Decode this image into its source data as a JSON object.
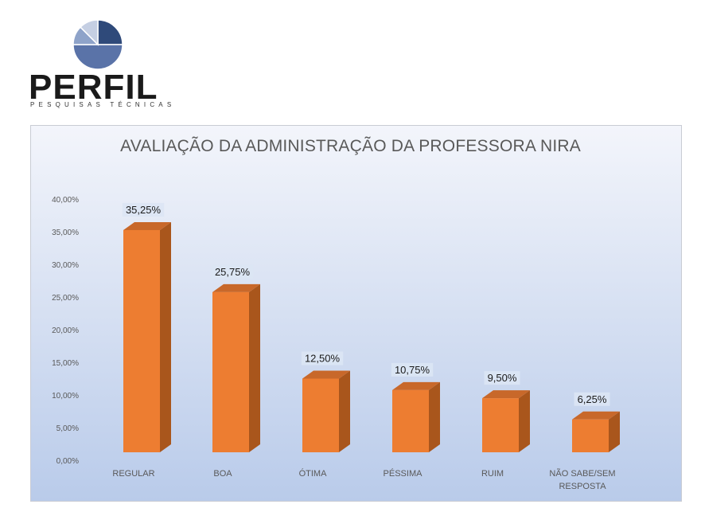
{
  "brand": {
    "name": "PERFIL",
    "tagline": "PESQUISAS TÉCNICAS",
    "logo_colors": [
      "#2f4a7a",
      "#5a73a8",
      "#8ea3c9",
      "#c5cfe3"
    ]
  },
  "colors": {
    "bar_front": "#ed7d31",
    "bar_side": "#a9561c",
    "bar_top": "#c8682a",
    "axis_text": "#595959",
    "label_bg": "#dce6f4"
  },
  "chart_data": {
    "type": "bar",
    "title": "AVALIAÇÃO DA ADMINISTRAÇÃO DA PROFESSORA NIRA",
    "categories": [
      "REGULAR",
      "BOA",
      "ÓTIMA",
      "PÉSSIMA",
      "RUIM",
      "NÃO SABE/SEM RESPOSTA"
    ],
    "category_lines": [
      [
        "REGULAR"
      ],
      [
        "BOA"
      ],
      [
        "ÓTIMA"
      ],
      [
        "PÉSSIMA"
      ],
      [
        "RUIM"
      ],
      [
        "NÃO SABE/SEM",
        "RESPOSTA"
      ]
    ],
    "values": [
      35.25,
      25.75,
      12.5,
      10.75,
      9.5,
      6.25
    ],
    "data_labels": [
      "35,25%",
      "25,75%",
      "12,50%",
      "10,75%",
      "9,50%",
      "6,25%"
    ],
    "ylim": [
      0,
      40
    ],
    "yticks": [
      "0,00%",
      "5,00%",
      "10,00%",
      "15,00%",
      "20,00%",
      "25,00%",
      "30,00%",
      "35,00%",
      "40,00%"
    ],
    "xlabel": "",
    "ylabel": "",
    "grid": false,
    "legend": "none",
    "style": "3d-column"
  }
}
